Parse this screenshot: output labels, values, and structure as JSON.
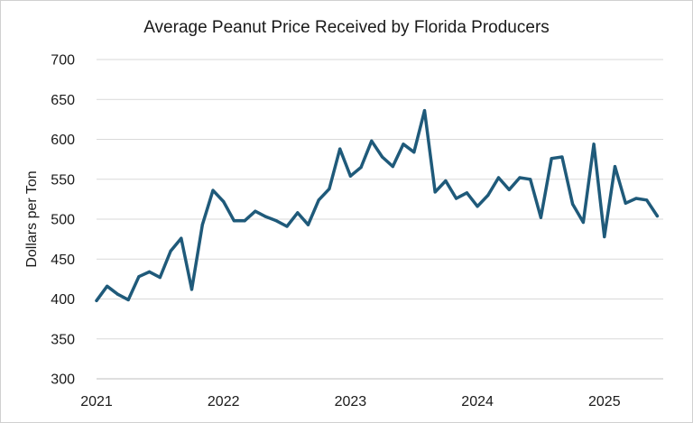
{
  "chart_data": {
    "type": "line",
    "title": "Average Peanut Price Received by Florida Producers",
    "xlabel": "",
    "ylabel": "Dollars per Ton",
    "ylim": [
      300,
      700
    ],
    "yticks": [
      "300",
      "350",
      "400",
      "450",
      "500",
      "550",
      "600",
      "650",
      "700"
    ],
    "xticks": [
      "2021",
      "2022",
      "2023",
      "2024",
      "2025"
    ],
    "x_start_year": 2021,
    "points_per_year": 12,
    "grid": true,
    "legend": "none",
    "line_color": "#1f5a7a",
    "series": [
      {
        "name": "Average Peanut Price",
        "values": [
          398,
          416,
          406,
          399,
          428,
          434,
          427,
          460,
          476,
          412,
          493,
          536,
          522,
          498,
          498,
          510,
          503,
          498,
          491,
          508,
          493,
          524,
          538,
          588,
          554,
          565,
          598,
          578,
          566,
          594,
          584,
          636,
          534,
          548,
          526,
          533,
          516,
          530,
          552,
          537,
          552,
          550,
          502,
          576,
          578,
          519,
          496,
          594,
          478,
          566,
          520,
          526,
          524,
          504
        ]
      }
    ]
  }
}
